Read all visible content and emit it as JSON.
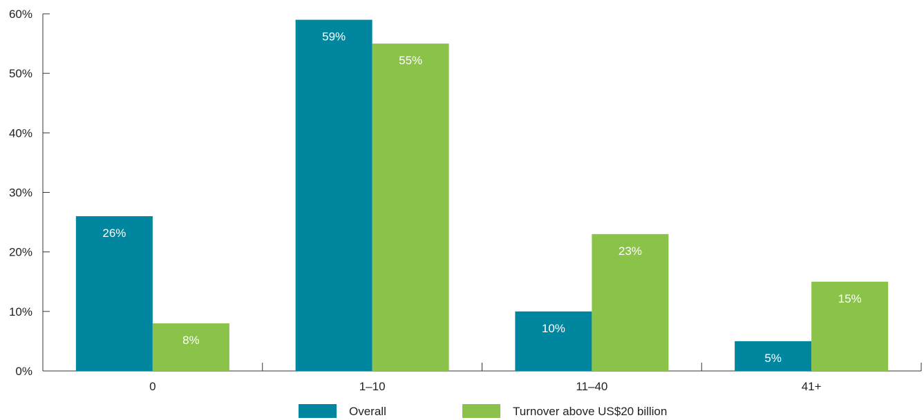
{
  "chart_data": {
    "type": "bar",
    "categories": [
      "0",
      "1–10",
      "11–40",
      "41+"
    ],
    "series": [
      {
        "name": "Overall",
        "values": [
          26,
          59,
          10,
          5
        ],
        "labels": [
          "26%",
          "59%",
          "10%",
          "5%"
        ],
        "color": "#00869f"
      },
      {
        "name": "Turnover above US$20 billion",
        "values": [
          8,
          55,
          23,
          15
        ],
        "labels": [
          "8%",
          "55%",
          "23%",
          "15%"
        ],
        "color": "#8bc34a"
      }
    ],
    "title": "",
    "xlabel": "",
    "ylabel": "",
    "ylim": [
      0,
      60
    ],
    "yticks": [
      0,
      10,
      20,
      30,
      40,
      50,
      60
    ],
    "ytick_labels": [
      "0%",
      "10%",
      "20%",
      "30%",
      "40%",
      "50%",
      "60%"
    ],
    "grid": false,
    "legend_position": "bottom-center"
  }
}
